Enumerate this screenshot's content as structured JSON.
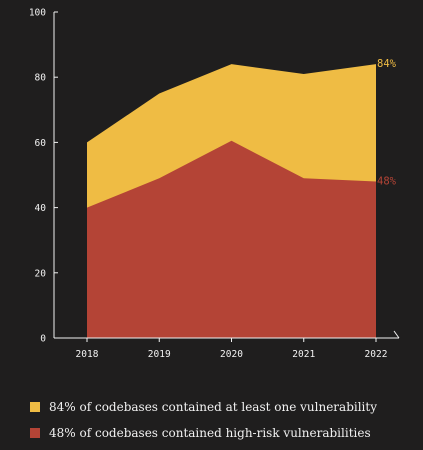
{
  "chart_data": {
    "type": "area",
    "x": [
      "2018",
      "2019",
      "2020",
      "2021",
      "2022"
    ],
    "series": [
      {
        "name": "84% of codebases contained at least one vulnerability",
        "values": [
          60,
          75,
          84,
          81,
          84
        ],
        "color": "#efbc44",
        "end_label": "84%"
      },
      {
        "name": "48% of codebases contained high-risk vulnerabilities",
        "values": [
          40,
          49,
          60.5,
          49,
          48
        ],
        "color": "#b44436",
        "end_label": "48%"
      }
    ],
    "yticks": [
      "0",
      "20",
      "40",
      "60",
      "80",
      "100"
    ],
    "ylim": [
      0,
      100
    ],
    "legend": "bottom-left",
    "grid": false
  },
  "colors": {
    "background": "#1f1e1e",
    "axis": "#f2f2f2",
    "yellow": "#efbc44",
    "red": "#b44436"
  }
}
